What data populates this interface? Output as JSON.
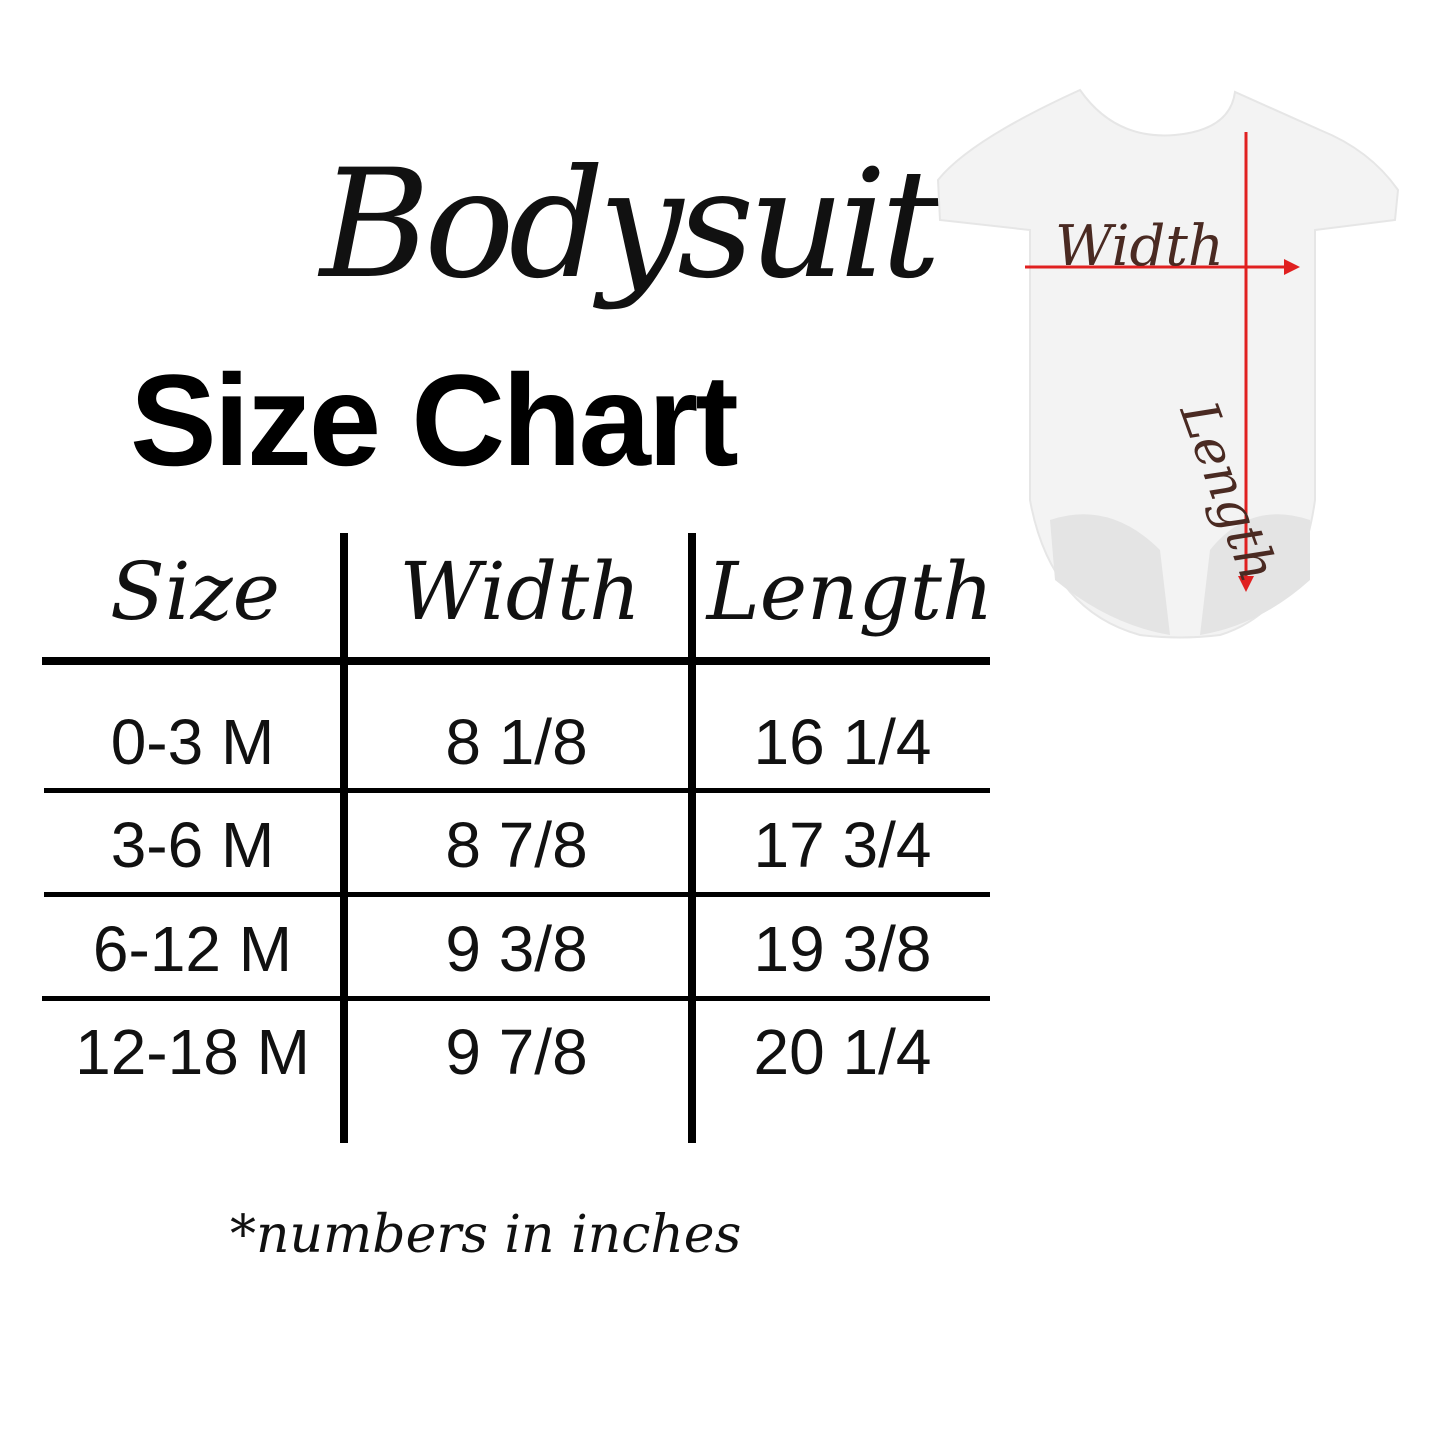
{
  "title_script": "Bodysuit",
  "title_main": "Size Chart",
  "headers": [
    "Size",
    "Width",
    "Length"
  ],
  "rows": [
    [
      "0-3 M",
      "8 1/8",
      "16 1/4"
    ],
    [
      "3-6 M",
      "8 7/8",
      "17 3/4"
    ],
    [
      "6-12 M",
      "9 3/8",
      "19 3/8"
    ],
    [
      "12-18 M",
      "9 7/8",
      "20 1/4"
    ]
  ],
  "footnote": "*numbers in inches",
  "diagram": {
    "width_label": "Width",
    "length_label": "Length",
    "arrow_color": "#e02020",
    "garment_color": "#f2f2f2"
  }
}
